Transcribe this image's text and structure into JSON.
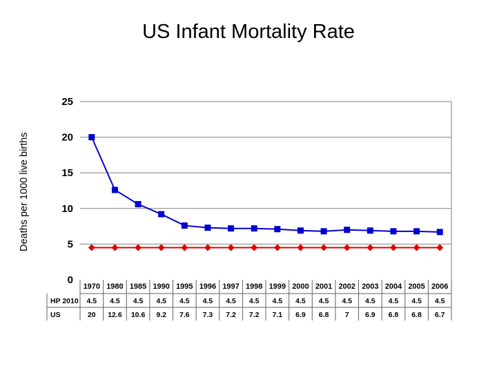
{
  "chart_data": {
    "type": "line",
    "title": "US Infant Mortality Rate",
    "ylabel": "Deaths per 1000 live births",
    "xlabel": "",
    "ylim": [
      0,
      25
    ],
    "yticks": [
      "0",
      "5",
      "10",
      "15",
      "20",
      "25"
    ],
    "categories": [
      "1970",
      "1980",
      "1985",
      "1990",
      "1995",
      "1996",
      "1997",
      "1998",
      "1999",
      "2000",
      "2001",
      "2002",
      "2003",
      "2004",
      "2005",
      "2006"
    ],
    "series": [
      {
        "name": "HP 2010",
        "color": "#e00000",
        "marker": "diamond",
        "values": [
          4.5,
          4.5,
          4.5,
          4.5,
          4.5,
          4.5,
          4.5,
          4.5,
          4.5,
          4.5,
          4.5,
          4.5,
          4.5,
          4.5,
          4.5,
          4.5
        ],
        "labels": [
          "4.5",
          "4.5",
          "4.5",
          "4.5",
          "4.5",
          "4.5",
          "4.5",
          "4.5",
          "4.5",
          "4.5",
          "4.5",
          "4.5",
          "4.5",
          "4.5",
          "4.5",
          "4.5"
        ]
      },
      {
        "name": "US",
        "color": "#0000d0",
        "marker": "square",
        "values": [
          20,
          12.6,
          10.6,
          9.2,
          7.6,
          7.3,
          7.2,
          7.2,
          7.1,
          6.9,
          6.8,
          7,
          6.9,
          6.8,
          6.8,
          6.7
        ],
        "labels": [
          "20",
          "12.6",
          "10.6",
          "9.2",
          "7.6",
          "7.3",
          "7.2",
          "7.2",
          "7.1",
          "6.9",
          "6.8",
          "7",
          "6.9",
          "6.8",
          "6.8",
          "6.7"
        ]
      }
    ],
    "grid": "horizontal",
    "legend": "data-table"
  }
}
